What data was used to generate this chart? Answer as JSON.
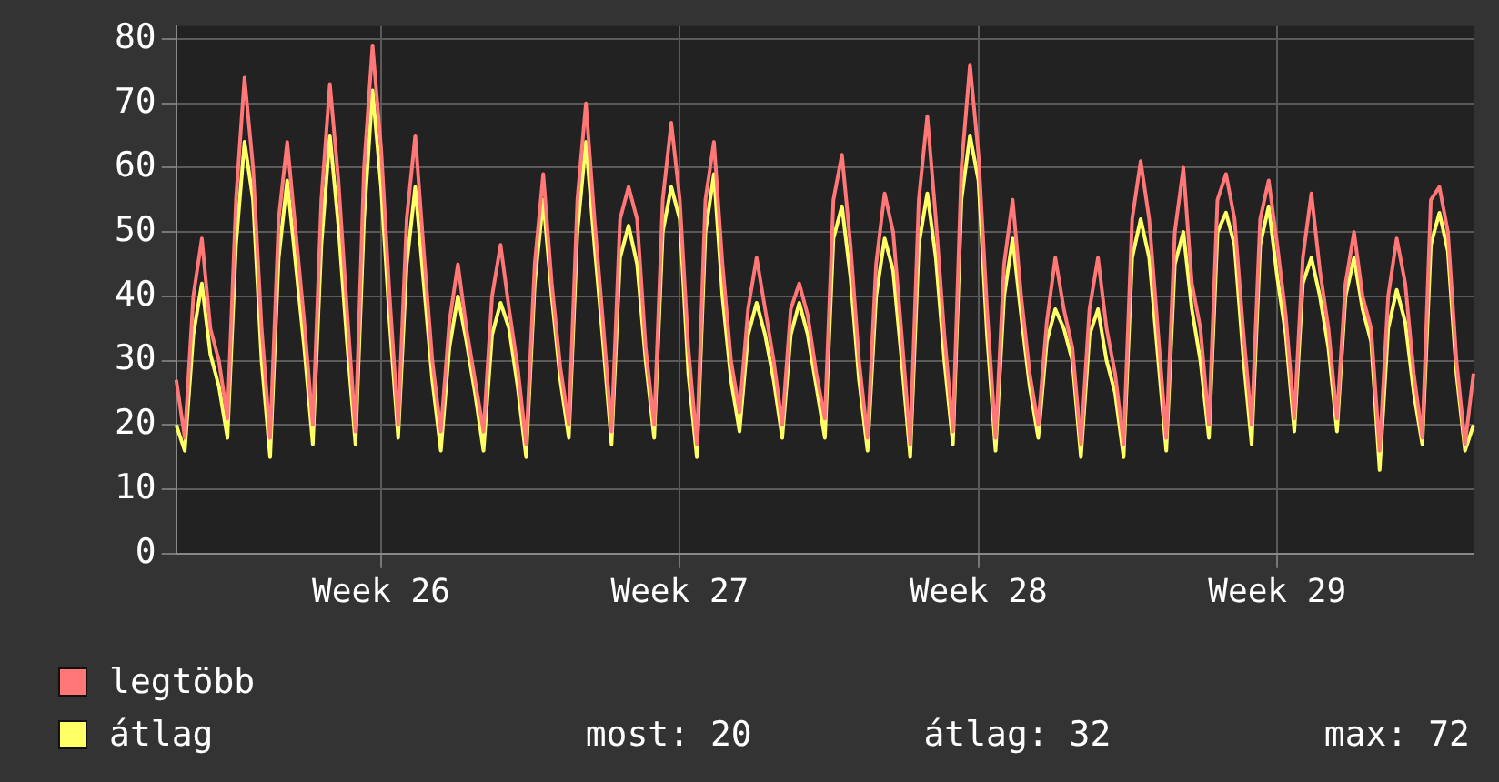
{
  "chart_data": {
    "type": "line",
    "series": [
      {
        "name": "legtöbb",
        "color": "#ff7777",
        "values": [
          27,
          18,
          40,
          49,
          35,
          30,
          21,
          55,
          74,
          60,
          35,
          18,
          52,
          64,
          50,
          36,
          20,
          55,
          73,
          58,
          38,
          19,
          60,
          79,
          63,
          40,
          20,
          52,
          65,
          47,
          30,
          19,
          36,
          45,
          35,
          27,
          19,
          40,
          48,
          38,
          29,
          17,
          45,
          59,
          42,
          29,
          20,
          55,
          70,
          52,
          36,
          19,
          52,
          57,
          52,
          32,
          20,
          55,
          67,
          55,
          32,
          17,
          55,
          64,
          45,
          30,
          22,
          38,
          46,
          38,
          30,
          20,
          38,
          42,
          37,
          28,
          21,
          55,
          62,
          48,
          30,
          18,
          45,
          56,
          50,
          34,
          17,
          55,
          68,
          52,
          34,
          19,
          60,
          76,
          62,
          38,
          18,
          45,
          55,
          40,
          28,
          20,
          36,
          46,
          38,
          32,
          17,
          38,
          46,
          35,
          28,
          17,
          52,
          61,
          52,
          35,
          18,
          50,
          60,
          42,
          35,
          20,
          55,
          59,
          52,
          35,
          20,
          52,
          58,
          48,
          37,
          21,
          46,
          56,
          44,
          35,
          21,
          42,
          50,
          40,
          35,
          16,
          40,
          49,
          42,
          28,
          18,
          55,
          57,
          50,
          30,
          17,
          28
        ]
      },
      {
        "name": "átlag",
        "color": "#ffff66",
        "values": [
          20,
          16,
          34,
          42,
          31,
          26,
          18,
          48,
          64,
          55,
          30,
          15,
          46,
          58,
          45,
          32,
          17,
          48,
          65,
          51,
          33,
          17,
          52,
          72,
          57,
          36,
          18,
          45,
          57,
          42,
          27,
          16,
          32,
          40,
          33,
          25,
          16,
          34,
          39,
          35,
          26,
          15,
          42,
          55,
          40,
          27,
          18,
          50,
          64,
          48,
          33,
          17,
          46,
          51,
          45,
          30,
          18,
          50,
          57,
          52,
          28,
          15,
          50,
          59,
          40,
          27,
          19,
          34,
          39,
          34,
          27,
          18,
          34,
          39,
          34,
          26,
          18,
          49,
          54,
          43,
          27,
          16,
          40,
          49,
          44,
          30,
          15,
          48,
          56,
          46,
          30,
          17,
          55,
          65,
          58,
          34,
          16,
          40,
          49,
          37,
          26,
          18,
          33,
          38,
          35,
          30,
          15,
          34,
          38,
          30,
          25,
          15,
          46,
          52,
          46,
          31,
          16,
          45,
          50,
          38,
          30,
          18,
          50,
          53,
          48,
          31,
          17,
          48,
          54,
          43,
          34,
          19,
          42,
          46,
          40,
          32,
          19,
          40,
          46,
          38,
          33,
          13,
          35,
          41,
          36,
          25,
          17,
          48,
          53,
          47,
          28,
          16,
          20
        ]
      }
    ],
    "categories": [
      null,
      null,
      null,
      null,
      null,
      null,
      null,
      null,
      null,
      null,
      null,
      null,
      null,
      null,
      null,
      null,
      null,
      null,
      null,
      null,
      null,
      null,
      null,
      null,
      "Week 26",
      null,
      null,
      null,
      null,
      null,
      null,
      null,
      null,
      null,
      null,
      null,
      null,
      null,
      null,
      null,
      null,
      null,
      null,
      null,
      null,
      null,
      null,
      null,
      null,
      null,
      null,
      null,
      null,
      null,
      null,
      null,
      null,
      null,
      null,
      "Week 27",
      null,
      null,
      null,
      null,
      null,
      null,
      null,
      null,
      null,
      null,
      null,
      null,
      null,
      null,
      null,
      null,
      null,
      null,
      null,
      null,
      null,
      null,
      null,
      null,
      null,
      null,
      null,
      null,
      null,
      null,
      null,
      null,
      null,
      null,
      "Week 28",
      null,
      null,
      null,
      null,
      null,
      null,
      null,
      null,
      null,
      null,
      null,
      null,
      null,
      null,
      null,
      null,
      null,
      null,
      null,
      null,
      null,
      null,
      null,
      null,
      null,
      null,
      null,
      null,
      null,
      null,
      null,
      null,
      null,
      null,
      "Week 29",
      null,
      null,
      null,
      null,
      null,
      null,
      null,
      null,
      null,
      null,
      null,
      null,
      null,
      null,
      null,
      null,
      null,
      null,
      null,
      null,
      null,
      null,
      null
    ],
    "ylim": [
      0,
      82
    ],
    "yticks": [
      0,
      10,
      20,
      30,
      40,
      50,
      60,
      70,
      80
    ],
    "grid": true,
    "legend": "bottom left",
    "marker": "none",
    "line_style": "solid",
    "annotations": [
      "most: 20",
      "átlag: 32",
      "max: 72"
    ]
  }
}
